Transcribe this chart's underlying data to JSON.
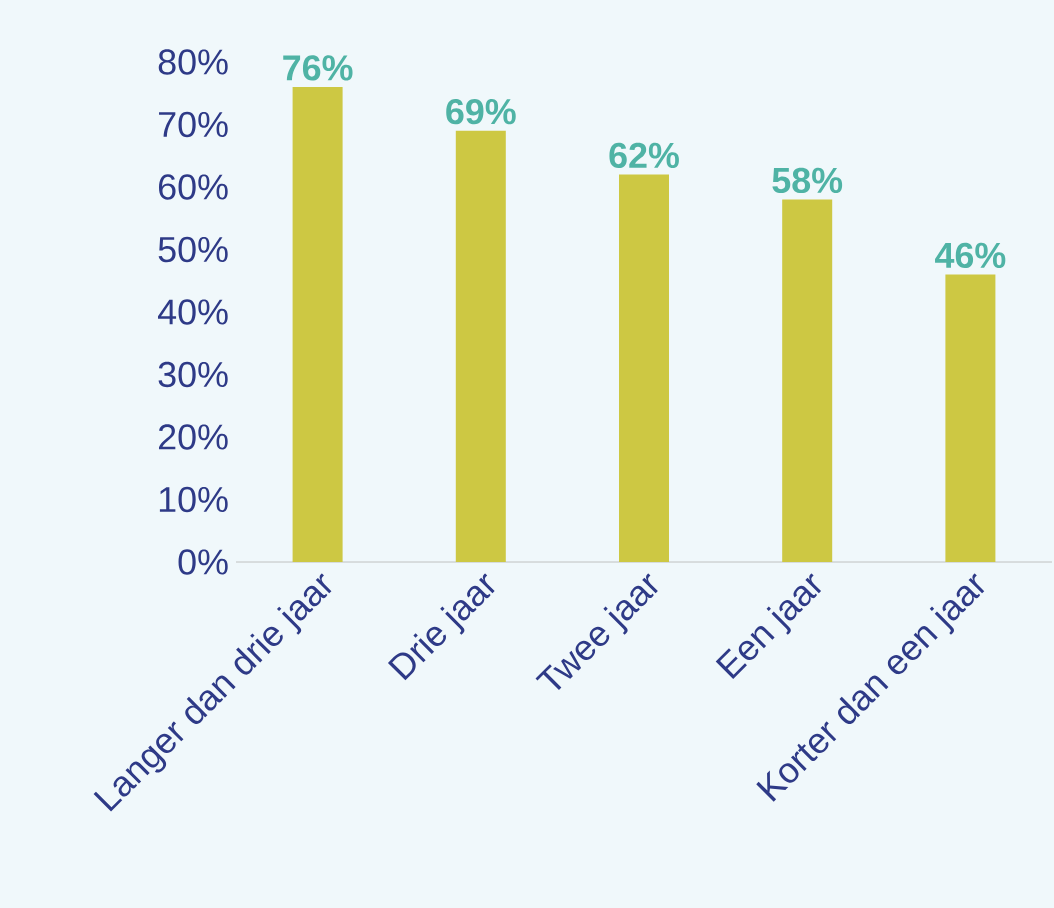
{
  "chart_data": {
    "type": "bar",
    "categories": [
      "Langer dan drie jaar",
      "Drie jaar",
      "Twee jaar",
      "Een jaar",
      "Korter dan een jaar"
    ],
    "values": [
      76,
      69,
      62,
      58,
      46
    ],
    "value_labels": [
      "76%",
      "69%",
      "62%",
      "58%",
      "46%"
    ],
    "color": "#cdc843",
    "ylim": [
      0,
      80
    ],
    "yticks": [
      {
        "value": 0,
        "label": "0%"
      },
      {
        "value": 10,
        "label": "10%"
      },
      {
        "value": 20,
        "label": "20%"
      },
      {
        "value": 30,
        "label": "30%"
      },
      {
        "value": 40,
        "label": "40%"
      },
      {
        "value": 50,
        "label": "50%"
      },
      {
        "value": 60,
        "label": "60%"
      },
      {
        "value": 70,
        "label": "70%"
      },
      {
        "value": 80,
        "label": "80%"
      }
    ],
    "grid": false
  }
}
